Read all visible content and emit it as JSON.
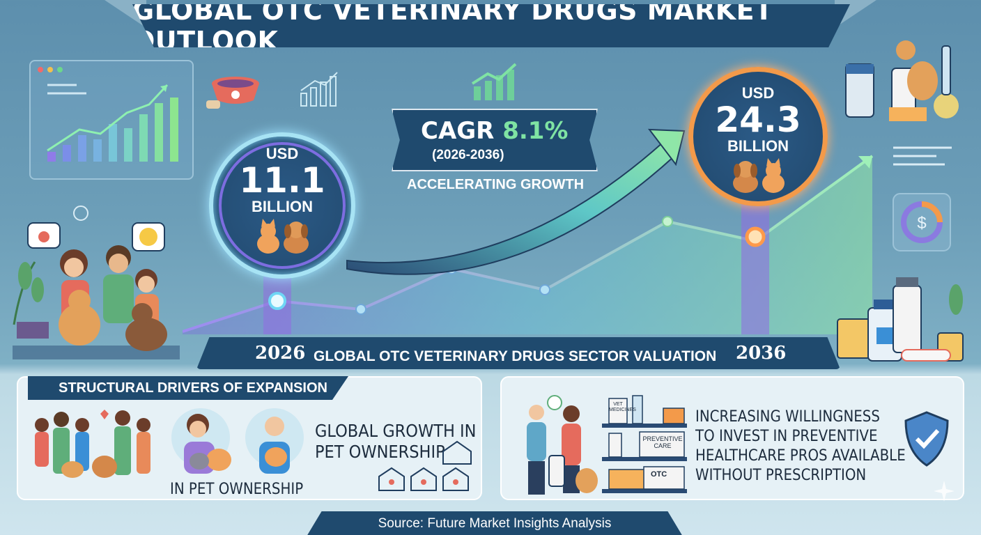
{
  "header": {
    "title": "GLOBAL OTC VETERINARY DRUGS MARKET OUTLOOK"
  },
  "start_value": {
    "currency": "USD",
    "amount": "11.1",
    "unit": "BILLION"
  },
  "end_value": {
    "currency": "USD",
    "amount": "24.3",
    "unit": "BILLION"
  },
  "cagr": {
    "label": "CAGR",
    "value": "8.1%",
    "period": "(2026-2036)"
  },
  "growth_caption": "ACCELERATING GROWTH",
  "timeline": {
    "start_year": "2026",
    "label": "GLOBAL OTC VETERINARY DRUGS SECTOR VALUATION",
    "end_year": "2036"
  },
  "drivers": {
    "heading": "STRUCTURAL DRIVERS OF EXPANSION",
    "ownership_caption": "IN PET OWNERSHIP",
    "ownership_text_line1": "GLOBAL GROWTH IN",
    "ownership_text_line2": "PET OWNERSHIP"
  },
  "preventive": {
    "line1": "INCREASING WILLINGNESS",
    "line2": "TO INVEST IN PREVENTIVE",
    "line3": "HEALTHCARE PROS AVAILABLE",
    "line4": "WITHOUT PRESCRIPTION",
    "shelf_labels": [
      "VET MEDICINES",
      "PREVENTIVE CARE",
      "OTC"
    ]
  },
  "source": "Source: Future Market Insights Analysis",
  "colors": {
    "navy": "#1f4a6e",
    "accent_green": "#7fe3a3",
    "accent_orange": "#f39a4a",
    "ring_purple": "#7d6de0"
  }
}
